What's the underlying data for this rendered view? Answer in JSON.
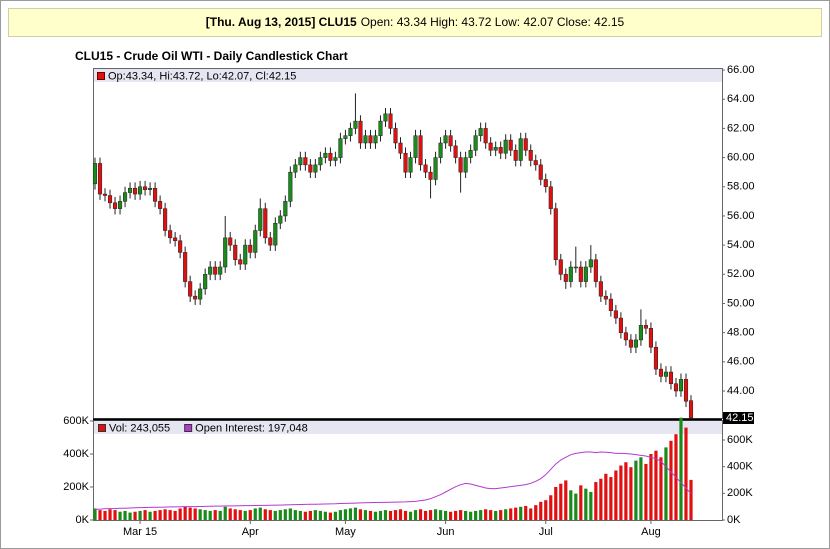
{
  "header": {
    "label": "[Thu. Aug 13, 2015] CLU15",
    "text": "Open: 43.34 High: 43.72 Low: 42.07 Close: 42.15"
  },
  "chart_data": [
    {
      "type": "candlestick",
      "title": "CLU15 - Crude Oil WTI - Daily Candlestick Chart",
      "legend": "Op:43.34, Hi:43.72, Lo:42.07, Cl:42.15",
      "up_color": "#1a8a1a",
      "down_color": "#e01010",
      "ylim": [
        42.15,
        66.14
      ],
      "yticks": [
        {
          "value": 44,
          "label": "44.00"
        },
        {
          "value": 46,
          "label": "46.00"
        },
        {
          "value": 48,
          "label": "48.00"
        },
        {
          "value": 50,
          "label": "50.00"
        },
        {
          "value": 52,
          "label": "52.00"
        },
        {
          "value": 54,
          "label": "54.00"
        },
        {
          "value": 56,
          "label": "56.00"
        },
        {
          "value": 58,
          "label": "58.00"
        },
        {
          "value": 60,
          "label": "60.00"
        },
        {
          "value": 62,
          "label": "62.00"
        },
        {
          "value": 64,
          "label": "64.00"
        },
        {
          "value": 66,
          "label": "66.00"
        }
      ],
      "open": [
        58.2,
        59.6,
        57.5,
        57.4,
        56.9,
        56.5,
        57.0,
        57.6,
        57.9,
        57.5,
        58.0,
        57.8,
        57.9,
        57.0,
        56.5,
        55.0,
        54.5,
        54.3,
        53.5,
        51.5,
        50.5,
        50.3,
        51.0,
        52.0,
        52.5,
        52.0,
        52.5,
        54.5,
        54.0,
        53.0,
        52.7,
        54.0,
        53.5,
        55.0,
        56.5,
        54.5,
        54.0,
        55.5,
        56.0,
        57.0,
        59.0,
        59.5,
        60.0,
        59.5,
        59.0,
        59.5,
        60.0,
        60.3,
        59.8,
        60.0,
        61.3,
        61.5,
        62.0,
        62.5,
        61.0,
        61.5,
        61.0,
        61.5,
        62.5,
        63.0,
        62.0,
        61.0,
        60.3,
        59.0,
        60.0,
        61.5,
        59.5,
        59.0,
        58.5,
        60.0,
        61.0,
        61.5,
        60.8,
        60.0,
        59.0,
        60.0,
        60.5,
        61.5,
        62.0,
        61.0,
        60.5,
        60.7,
        60.3,
        61.2,
        60.5,
        59.8,
        61.3,
        60.5,
        59.8,
        59.5,
        58.5,
        58.0,
        56.5,
        53.0,
        52.0,
        51.5,
        52.5,
        52.5,
        51.5,
        52.5,
        53.0,
        51.5,
        50.5,
        50.3,
        49.5,
        49.0,
        48.0,
        47.5,
        47.0,
        47.5,
        48.5,
        48.3,
        47.0,
        45.5,
        45.0,
        45.3,
        44.5,
        44.0,
        44.8,
        43.34
      ],
      "high": [
        60.0,
        60.0,
        57.9,
        57.8,
        57.3,
        57.4,
        58.0,
        58.3,
        58.3,
        58.4,
        58.4,
        58.3,
        58.3,
        57.4,
        56.9,
        55.4,
        54.9,
        54.7,
        53.9,
        51.9,
        50.9,
        51.4,
        52.4,
        52.9,
        52.9,
        52.9,
        56.0,
        54.9,
        54.4,
        53.4,
        54.4,
        54.4,
        55.4,
        57.2,
        56.9,
        54.9,
        55.9,
        56.4,
        57.4,
        59.4,
        59.9,
        60.4,
        60.4,
        59.9,
        59.9,
        60.4,
        60.7,
        60.7,
        60.4,
        61.7,
        61.9,
        62.4,
        64.4,
        62.9,
        61.9,
        61.9,
        61.9,
        62.9,
        63.4,
        63.4,
        62.4,
        61.4,
        60.7,
        60.4,
        61.9,
        61.9,
        59.9,
        59.4,
        60.4,
        61.4,
        61.9,
        61.9,
        61.2,
        60.4,
        60.4,
        60.9,
        61.9,
        62.4,
        62.4,
        61.4,
        61.1,
        61.1,
        61.6,
        61.6,
        60.9,
        61.7,
        61.7,
        60.9,
        60.2,
        59.9,
        58.9,
        58.4,
        56.9,
        53.4,
        52.4,
        52.9,
        53.9,
        52.9,
        52.9,
        54.0,
        53.4,
        51.9,
        50.9,
        50.7,
        49.9,
        49.4,
        48.4,
        47.9,
        47.9,
        49.6,
        48.9,
        48.7,
        47.4,
        45.9,
        45.7,
        45.7,
        44.9,
        45.2,
        45.2,
        43.72
      ],
      "low": [
        57.8,
        57.1,
        57.0,
        56.5,
        56.1,
        56.1,
        56.6,
        57.2,
        57.1,
        57.1,
        57.4,
        57.4,
        56.6,
        56.1,
        54.6,
        54.1,
        53.9,
        53.1,
        51.1,
        50.1,
        49.9,
        49.9,
        50.6,
        51.6,
        51.6,
        51.6,
        52.1,
        53.6,
        52.6,
        52.3,
        52.3,
        53.1,
        53.1,
        54.6,
        54.1,
        53.6,
        53.6,
        55.1,
        55.6,
        56.6,
        58.6,
        59.1,
        59.1,
        58.6,
        58.6,
        59.1,
        59.6,
        59.4,
        59.4,
        59.6,
        60.9,
        61.1,
        61.6,
        60.6,
        60.6,
        60.6,
        60.6,
        61.1,
        62.1,
        61.6,
        60.6,
        59.9,
        58.6,
        58.6,
        59.6,
        59.1,
        58.6,
        57.2,
        58.1,
        59.6,
        60.6,
        60.4,
        59.6,
        57.6,
        58.6,
        59.6,
        60.1,
        61.1,
        60.6,
        60.1,
        60.1,
        59.9,
        59.9,
        60.1,
        59.4,
        59.4,
        60.1,
        59.4,
        59.1,
        58.1,
        57.6,
        56.1,
        52.6,
        51.6,
        51.0,
        51.1,
        52.1,
        51.1,
        51.1,
        52.1,
        51.1,
        50.1,
        49.9,
        49.1,
        48.6,
        47.6,
        47.1,
        46.6,
        46.6,
        47.1,
        47.9,
        46.6,
        45.1,
        44.6,
        44.6,
        44.1,
        43.6,
        43.6,
        42.9,
        42.07
      ],
      "close": [
        59.6,
        57.5,
        57.4,
        56.9,
        56.5,
        57.0,
        57.6,
        57.9,
        57.5,
        58.0,
        57.8,
        57.9,
        57.0,
        56.5,
        55.0,
        54.5,
        54.3,
        53.5,
        51.5,
        50.5,
        50.3,
        51.0,
        52.0,
        52.5,
        52.0,
        52.5,
        54.5,
        54.0,
        53.0,
        52.7,
        54.0,
        53.5,
        55.0,
        56.5,
        54.5,
        54.0,
        55.5,
        56.0,
        57.0,
        59.0,
        59.5,
        60.0,
        59.5,
        59.0,
        59.5,
        60.0,
        60.3,
        59.8,
        60.0,
        61.3,
        61.5,
        62.0,
        62.5,
        61.0,
        61.5,
        61.0,
        61.5,
        62.5,
        63.0,
        62.0,
        61.0,
        60.3,
        59.0,
        60.0,
        61.5,
        59.5,
        59.0,
        58.5,
        60.0,
        61.0,
        61.5,
        60.8,
        60.0,
        59.0,
        60.0,
        60.5,
        61.5,
        62.0,
        61.0,
        60.5,
        60.7,
        60.3,
        61.2,
        60.5,
        59.8,
        61.3,
        60.5,
        59.8,
        59.5,
        58.5,
        58.0,
        56.5,
        53.0,
        52.0,
        51.5,
        52.5,
        52.5,
        51.5,
        52.5,
        53.0,
        51.5,
        50.5,
        50.3,
        49.5,
        49.0,
        48.0,
        47.5,
        47.0,
        47.5,
        48.5,
        48.3,
        47.0,
        45.5,
        45.0,
        45.3,
        44.5,
        44.0,
        44.8,
        43.3,
        42.15
      ]
    },
    {
      "type": "bar",
      "categories": [
        null,
        null,
        null,
        null,
        null,
        null,
        null,
        null,
        null,
        "Mar 15",
        null,
        null,
        null,
        null,
        null,
        null,
        null,
        null,
        null,
        null,
        null,
        null,
        null,
        null,
        null,
        null,
        null,
        null,
        null,
        null,
        null,
        "Apr",
        null,
        null,
        null,
        null,
        null,
        null,
        null,
        null,
        null,
        null,
        null,
        null,
        null,
        null,
        null,
        null,
        null,
        null,
        "May",
        null,
        null,
        null,
        null,
        null,
        null,
        null,
        null,
        null,
        null,
        null,
        null,
        null,
        null,
        null,
        null,
        null,
        null,
        null,
        "Jun",
        null,
        null,
        null,
        null,
        null,
        null,
        null,
        null,
        null,
        null,
        null,
        null,
        null,
        null,
        null,
        null,
        null,
        null,
        null,
        "Jul",
        null,
        null,
        null,
        null,
        null,
        null,
        null,
        null,
        null,
        null,
        null,
        null,
        null,
        null,
        null,
        null,
        null,
        null,
        null,
        null,
        "Aug",
        null,
        null,
        null,
        null,
        null,
        null,
        null,
        null
      ],
      "ylim": [
        0,
        606000
      ],
      "yticks": [
        {
          "value": 0,
          "label": "0K"
        },
        {
          "value": 200000,
          "label": "200K"
        },
        {
          "value": 400000,
          "label": "400K"
        },
        {
          "value": 600000,
          "label": "600K"
        }
      ],
      "y2lim": [
        0,
        750000
      ],
      "y2ticks": [
        {
          "value": 0,
          "label": "0K"
        },
        {
          "value": 200000,
          "label": "200K"
        },
        {
          "value": 400000,
          "label": "400K"
        },
        {
          "value": 600000,
          "label": "600K"
        }
      ],
      "series": [
        {
          "name": "Vol: 243,055",
          "type": "bar",
          "color": "#e01010",
          "values": [
            70000,
            60000,
            55000,
            65000,
            60000,
            50000,
            55000,
            45000,
            50000,
            55000,
            60000,
            50000,
            55000,
            60000,
            65000,
            60000,
            55000,
            70000,
            80000,
            75000,
            70000,
            65000,
            60000,
            55000,
            60000,
            55000,
            80000,
            70000,
            65000,
            60000,
            55000,
            60000,
            70000,
            75000,
            65000,
            60000,
            55000,
            60000,
            65000,
            70000,
            60000,
            55000,
            50000,
            55000,
            60000,
            55000,
            50000,
            45000,
            50000,
            60000,
            65000,
            70000,
            75000,
            65000,
            60000,
            55000,
            50000,
            55000,
            60000,
            55000,
            60000,
            65000,
            55000,
            50000,
            60000,
            65000,
            55000,
            60000,
            65000,
            60000,
            55000,
            50000,
            55000,
            60000,
            55000,
            50000,
            55000,
            60000,
            65000,
            60000,
            55000,
            60000,
            65000,
            70000,
            75000,
            80000,
            85000,
            70000,
            90000,
            110000,
            120000,
            150000,
            200000,
            220000,
            240000,
            180000,
            160000,
            210000,
            190000,
            170000,
            230000,
            250000,
            280000,
            260000,
            300000,
            330000,
            350000,
            320000,
            360000,
            380000,
            340000,
            400000,
            420000,
            380000,
            440000,
            480000,
            520000,
            620000,
            560000,
            243055
          ]
        },
        {
          "name": "Open Interest: 197,048",
          "type": "line",
          "axis": "y2",
          "color": "#b23ad0",
          "values": [
            80000,
            82000,
            84000,
            85000,
            86000,
            88000,
            88000,
            90000,
            92000,
            93000,
            94000,
            95000,
            96000,
            96000,
            97000,
            98000,
            98000,
            99000,
            100000,
            100000,
            100000,
            101000,
            102000,
            103000,
            104000,
            104000,
            105000,
            106000,
            106000,
            107000,
            108000,
            108000,
            109000,
            110000,
            110000,
            111000,
            112000,
            112000,
            113000,
            114000,
            115000,
            116000,
            117000,
            118000,
            118000,
            119000,
            120000,
            121000,
            122000,
            124000,
            125000,
            126000,
            127000,
            128000,
            129000,
            130000,
            131000,
            132000,
            132000,
            133000,
            134000,
            135000,
            136000,
            138000,
            140000,
            145000,
            150000,
            160000,
            175000,
            190000,
            210000,
            230000,
            250000,
            265000,
            275000,
            270000,
            260000,
            250000,
            240000,
            235000,
            235000,
            240000,
            245000,
            250000,
            255000,
            260000,
            265000,
            275000,
            290000,
            310000,
            340000,
            380000,
            420000,
            450000,
            470000,
            490000,
            500000,
            505000,
            510000,
            510000,
            505000,
            510000,
            508000,
            505000,
            500000,
            500000,
            498000,
            495000,
            490000,
            485000,
            480000,
            470000,
            460000,
            440000,
            400000,
            360000,
            320000,
            280000,
            240000,
            197048
          ]
        }
      ]
    }
  ]
}
